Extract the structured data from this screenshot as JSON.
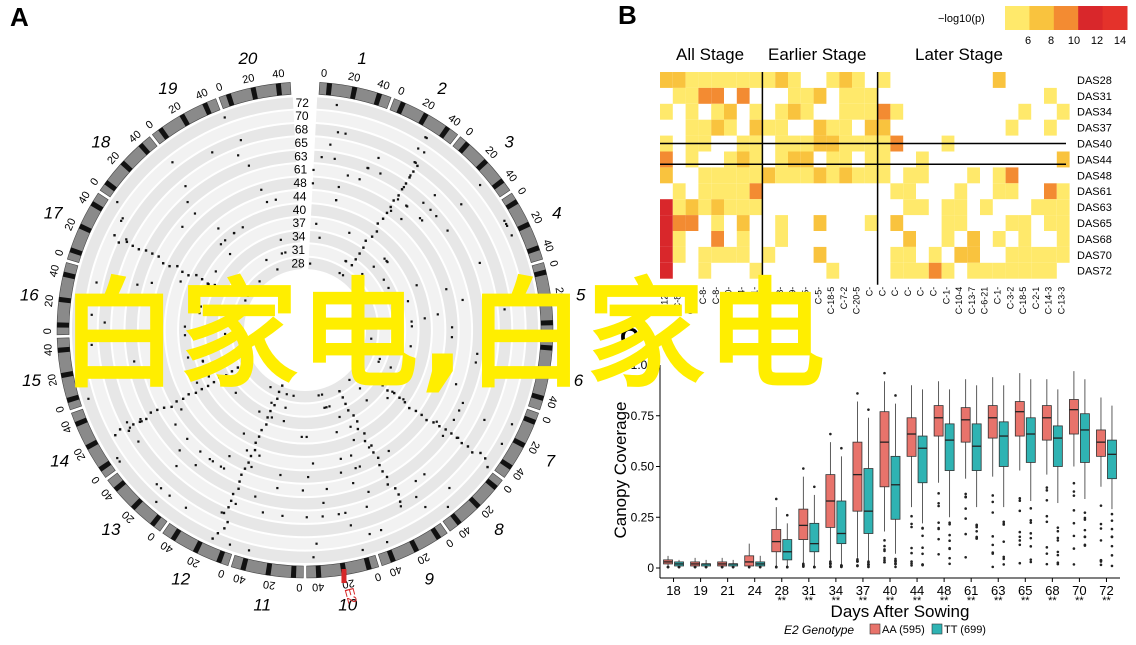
{
  "panels": {
    "a": "A",
    "b": "B",
    "c": "C"
  },
  "circos": {
    "ring_labels": [
      "72",
      "70",
      "68",
      "65",
      "63",
      "61",
      "48",
      "44",
      "40",
      "37",
      "34",
      "31",
      "28"
    ],
    "chromosomes": [
      {
        "name": "1",
        "start_tick": "0",
        "mid_tick": "20",
        "end_tick": "40"
      },
      {
        "name": "2",
        "start_tick": "0",
        "mid_tick": "20",
        "end_tick": "40"
      },
      {
        "name": "3",
        "start_tick": "0",
        "mid_tick": "20",
        "end_tick": "40"
      },
      {
        "name": "4",
        "start_tick": "0",
        "mid_tick": "20",
        "end_tick": "40"
      },
      {
        "name": "5",
        "start_tick": "0",
        "mid_tick": "20",
        "end_tick": "40"
      },
      {
        "name": "6",
        "start_tick": "0",
        "mid_tick": "20",
        "end_tick": "40"
      },
      {
        "name": "7",
        "start_tick": "0",
        "mid_tick": "20",
        "end_tick": "40"
      },
      {
        "name": "8",
        "start_tick": "0",
        "mid_tick": "20",
        "end_tick": "40"
      },
      {
        "name": "9",
        "start_tick": "0",
        "mid_tick": "20",
        "end_tick": "40"
      },
      {
        "name": "10",
        "start_tick": "0",
        "mid_tick": "20",
        "end_tick": "40"
      },
      {
        "name": "11",
        "start_tick": "0",
        "mid_tick": "20",
        "end_tick": "40"
      },
      {
        "name": "12",
        "start_tick": "0",
        "mid_tick": "20",
        "end_tick": "40"
      },
      {
        "name": "13",
        "start_tick": "0",
        "mid_tick": "20",
        "end_tick": "40"
      },
      {
        "name": "14",
        "start_tick": "0",
        "mid_tick": "20",
        "end_tick": "40"
      },
      {
        "name": "15",
        "start_tick": "0",
        "mid_tick": "20",
        "end_tick": "40"
      },
      {
        "name": "16",
        "start_tick": "0",
        "mid_tick": "20",
        "end_tick": "40"
      },
      {
        "name": "17",
        "start_tick": "0",
        "mid_tick": "20",
        "end_tick": "40"
      },
      {
        "name": "18",
        "start_tick": "0",
        "mid_tick": "20",
        "end_tick": "40"
      },
      {
        "name": "19",
        "start_tick": "0",
        "mid_tick": "20",
        "end_tick": "40"
      },
      {
        "name": "20",
        "start_tick": "0",
        "mid_tick": "20",
        "end_tick": "40"
      }
    ],
    "highlight": "E2",
    "highlight_color": "#d62728"
  },
  "chart_data": [
    {
      "type": "heatmap",
      "title": "",
      "legend_title": "−log10(p)",
      "legend_ticks": [
        "6",
        "8",
        "10",
        "12",
        "14"
      ],
      "stage_headers": [
        "All Stage",
        "Earlier Stage",
        "Later Stage"
      ],
      "rows": [
        "DAS28",
        "DAS31",
        "DAS34",
        "DAS37",
        "DAS40",
        "DAS44",
        "DAS48",
        "DAS61",
        "DAS63",
        "DAS65",
        "DAS68",
        "DAS70",
        "DAS72"
      ],
      "column_labels": [
        "C-12-1",
        "C-8-4",
        "C-6-18",
        "C-8-",
        "C-8-",
        "C-0-",
        "C-4-",
        "C-1-",
        "C-5-",
        "C-8-",
        "C-9-",
        "C-5-",
        "C-5-",
        "C-18-5",
        "C-7-2",
        "C-20-5",
        "C-",
        "C-",
        "C-",
        "C-",
        "C-",
        "C-",
        "C-1-",
        "C-10-4",
        "C-13-7",
        "C-6-21",
        "C-1-",
        "C-3-2",
        "C-18-5",
        "C-2-1",
        "C-14-3",
        "C-13-3"
      ],
      "colors": [
        "#ffe96b",
        "#f9c33e",
        "#f38b32",
        "#d9272b"
      ]
    },
    {
      "type": "box",
      "title": "",
      "xlabel": "Days After Sowing",
      "ylabel": "Canopy Coverage",
      "categories": [
        "18",
        "19",
        "21",
        "24",
        "28",
        "31",
        "34",
        "37",
        "40",
        "44",
        "48",
        "61",
        "63",
        "65",
        "68",
        "70",
        "72"
      ],
      "significance": [
        "",
        "",
        "",
        "",
        "**",
        "**",
        "**",
        "**",
        "**",
        "**",
        "**",
        "**",
        "**",
        "**",
        "**",
        "**",
        "**"
      ],
      "ylim": [
        0,
        1.0
      ],
      "yticks": [
        "0",
        "0.25",
        "0.50",
        "0.75",
        "1.00"
      ],
      "legend_title": "E2 Genotype",
      "series": [
        {
          "name": "AA (595)",
          "color": "#e8736b",
          "q1": [
            0.02,
            0.01,
            0.01,
            0.01,
            0.08,
            0.14,
            0.2,
            0.28,
            0.4,
            0.55,
            0.65,
            0.62,
            0.64,
            0.65,
            0.63,
            0.66,
            0.55
          ],
          "median": [
            0.03,
            0.02,
            0.02,
            0.03,
            0.13,
            0.21,
            0.33,
            0.46,
            0.62,
            0.66,
            0.74,
            0.73,
            0.74,
            0.77,
            0.74,
            0.78,
            0.62
          ],
          "q3": [
            0.04,
            0.03,
            0.03,
            0.06,
            0.19,
            0.29,
            0.46,
            0.62,
            0.77,
            0.74,
            0.8,
            0.79,
            0.8,
            0.82,
            0.8,
            0.83,
            0.68
          ],
          "whisker_low": [
            0.0,
            0.0,
            0.0,
            0.0,
            0.0,
            0.02,
            0.03,
            0.05,
            0.18,
            0.3,
            0.42,
            0.44,
            0.45,
            0.48,
            0.46,
            0.5,
            0.4
          ],
          "whisker_high": [
            0.06,
            0.05,
            0.05,
            0.12,
            0.3,
            0.45,
            0.62,
            0.82,
            0.92,
            0.9,
            0.92,
            0.93,
            0.94,
            0.96,
            0.93,
            0.97,
            0.84
          ]
        },
        {
          "name": "TT (699)",
          "color": "#2fb3b3",
          "q1": [
            0.01,
            0.01,
            0.01,
            0.01,
            0.04,
            0.08,
            0.12,
            0.17,
            0.24,
            0.42,
            0.48,
            0.48,
            0.5,
            0.52,
            0.5,
            0.52,
            0.44
          ],
          "median": [
            0.02,
            0.02,
            0.02,
            0.02,
            0.08,
            0.12,
            0.17,
            0.28,
            0.41,
            0.59,
            0.63,
            0.6,
            0.65,
            0.66,
            0.64,
            0.68,
            0.56
          ],
          "q3": [
            0.03,
            0.02,
            0.02,
            0.03,
            0.14,
            0.22,
            0.33,
            0.49,
            0.55,
            0.65,
            0.71,
            0.71,
            0.72,
            0.74,
            0.7,
            0.76,
            0.63
          ],
          "whisker_low": [
            0.0,
            0.0,
            0.0,
            0.0,
            0.0,
            0.0,
            0.01,
            0.03,
            0.07,
            0.22,
            0.25,
            0.3,
            0.3,
            0.33,
            0.32,
            0.34,
            0.29
          ],
          "whisker_high": [
            0.04,
            0.04,
            0.04,
            0.06,
            0.22,
            0.36,
            0.55,
            0.74,
            0.81,
            0.88,
            0.88,
            0.9,
            0.9,
            0.93,
            0.88,
            0.93,
            0.8
          ]
        }
      ]
    }
  ],
  "watermark": "白家电,白家电"
}
